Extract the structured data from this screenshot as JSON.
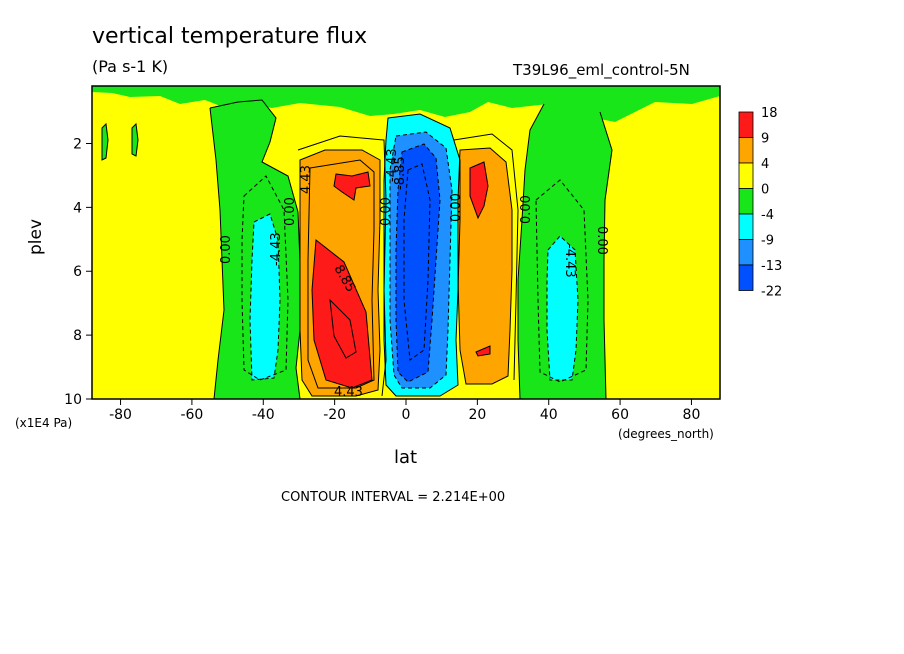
{
  "title": "vertical temperature flux",
  "units": "(Pa s-1 K)",
  "run_name": "T39L96_eml_control-5N",
  "contour_interval": "CONTOUR INTERVAL = 2.214E+00",
  "chart_data": {
    "type": "heatmap",
    "title": "vertical temperature flux",
    "xlabel": "lat",
    "x_units": "(degrees_north)",
    "ylabel": "plev",
    "y_units": "(x1E4 Pa)",
    "xlim": [
      -88,
      88
    ],
    "ylim": [
      10,
      0.2
    ],
    "x_ticks": [
      -80,
      -60,
      -40,
      -20,
      0,
      20,
      40,
      60,
      80
    ],
    "y_ticks": [
      2,
      4,
      6,
      8,
      10
    ],
    "colorbar": {
      "labels": [
        "18",
        "9",
        "4",
        "0",
        "-4",
        "-9",
        "-13",
        "-22"
      ],
      "colors": [
        "#ff1a1a",
        "#ffa500",
        "#ffff00",
        "#19e619",
        "#00ffff",
        "#1e90ff",
        "#0050ff"
      ]
    },
    "contour_labels": [
      "4.43",
      "0.00",
      "0.00",
      "-4.43",
      "8.85",
      "4.43",
      "0.00",
      "-8.85",
      "-4.43",
      "0.00",
      "0.00",
      "-4.43",
      "0.00"
    ]
  }
}
